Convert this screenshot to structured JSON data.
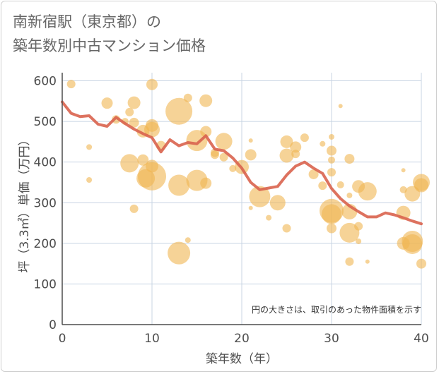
{
  "title_lines": [
    "南新宿駅（東京都）の",
    "築年数別中古マンション価格"
  ],
  "colors": {
    "bubble": "#f0b652",
    "line": "#d9634e",
    "grid": "#c8d4e3",
    "axis": "#4d4d4d"
  },
  "chart_data": {
    "type": "scatter",
    "title": "南新宿駅（東京都）の築年数別中古マンション価格",
    "xlabel": "築年数（年）",
    "ylabel": "坪（3.3㎡）単価（万円）",
    "xlim": [
      0,
      40
    ],
    "ylim": [
      0,
      620
    ],
    "xticks": [
      0,
      10,
      20,
      30,
      40
    ],
    "yticks": [
      0,
      100,
      200,
      300,
      400,
      500,
      600
    ],
    "grid": true,
    "note": "円の大きさは、取引のあった物件面積を示す",
    "scatter": [
      {
        "x": 1,
        "y": 592,
        "r": 6
      },
      {
        "x": 3,
        "y": 437,
        "r": 4
      },
      {
        "x": 3,
        "y": 356,
        "r": 4
      },
      {
        "x": 5,
        "y": 545,
        "r": 8
      },
      {
        "x": 6,
        "y": 505,
        "r": 6
      },
      {
        "x": 7,
        "y": 500,
        "r": 5
      },
      {
        "x": 7.5,
        "y": 523,
        "r": 6
      },
      {
        "x": 7.5,
        "y": 397,
        "r": 13
      },
      {
        "x": 8,
        "y": 546,
        "r": 9
      },
      {
        "x": 8,
        "y": 497,
        "r": 7
      },
      {
        "x": 8,
        "y": 285,
        "r": 6
      },
      {
        "x": 9,
        "y": 476,
        "r": 9
      },
      {
        "x": 9,
        "y": 405,
        "r": 8
      },
      {
        "x": 9.3,
        "y": 360,
        "r": 13
      },
      {
        "x": 10,
        "y": 591,
        "r": 8
      },
      {
        "x": 10,
        "y": 490,
        "r": 9
      },
      {
        "x": 10,
        "y": 480,
        "r": 11
      },
      {
        "x": 10,
        "y": 390,
        "r": 9
      },
      {
        "x": 10,
        "y": 365,
        "r": 20
      },
      {
        "x": 11,
        "y": 440,
        "r": 7
      },
      {
        "x": 13,
        "y": 525,
        "r": 19
      },
      {
        "x": 13,
        "y": 343,
        "r": 15
      },
      {
        "x": 13,
        "y": 176,
        "r": 16
      },
      {
        "x": 14,
        "y": 558,
        "r": 6
      },
      {
        "x": 14,
        "y": 208,
        "r": 4
      },
      {
        "x": 15,
        "y": 453,
        "r": 15
      },
      {
        "x": 15,
        "y": 355,
        "r": 15
      },
      {
        "x": 16,
        "y": 551,
        "r": 9
      },
      {
        "x": 16,
        "y": 475,
        "r": 8
      },
      {
        "x": 16,
        "y": 348,
        "r": 8
      },
      {
        "x": 17,
        "y": 423,
        "r": 6
      },
      {
        "x": 17,
        "y": 418,
        "r": 6
      },
      {
        "x": 18,
        "y": 451,
        "r": 12
      },
      {
        "x": 18,
        "y": 412,
        "r": 6
      },
      {
        "x": 19,
        "y": 384,
        "r": 5
      },
      {
        "x": 20,
        "y": 388,
        "r": 10
      },
      {
        "x": 21,
        "y": 453,
        "r": 3
      },
      {
        "x": 21,
        "y": 418,
        "r": 8
      },
      {
        "x": 21,
        "y": 287,
        "r": 3
      },
      {
        "x": 22,
        "y": 315,
        "r": 15
      },
      {
        "x": 23,
        "y": 263,
        "r": 4
      },
      {
        "x": 24,
        "y": 300,
        "r": 11
      },
      {
        "x": 25,
        "y": 450,
        "r": 9
      },
      {
        "x": 25,
        "y": 416,
        "r": 10
      },
      {
        "x": 25,
        "y": 237,
        "r": 6
      },
      {
        "x": 26,
        "y": 437,
        "r": 8
      },
      {
        "x": 26,
        "y": 420,
        "r": 6
      },
      {
        "x": 27,
        "y": 460,
        "r": 6
      },
      {
        "x": 28,
        "y": 370,
        "r": 7
      },
      {
        "x": 29,
        "y": 445,
        "r": 4
      },
      {
        "x": 29,
        "y": 342,
        "r": 6
      },
      {
        "x": 30,
        "y": 462,
        "r": 4
      },
      {
        "x": 30,
        "y": 428,
        "r": 7
      },
      {
        "x": 30,
        "y": 405,
        "r": 5
      },
      {
        "x": 30,
        "y": 375,
        "r": 6
      },
      {
        "x": 30,
        "y": 280,
        "r": 17
      },
      {
        "x": 30,
        "y": 272,
        "r": 14
      },
      {
        "x": 30,
        "y": 237,
        "r": 7
      },
      {
        "x": 31,
        "y": 538,
        "r": 3
      },
      {
        "x": 31,
        "y": 344,
        "r": 5
      },
      {
        "x": 32,
        "y": 408,
        "r": 7
      },
      {
        "x": 32,
        "y": 318,
        "r": 4
      },
      {
        "x": 32,
        "y": 278,
        "r": 11
      },
      {
        "x": 32,
        "y": 226,
        "r": 14
      },
      {
        "x": 32,
        "y": 155,
        "r": 6
      },
      {
        "x": 33,
        "y": 340,
        "r": 9
      },
      {
        "x": 33,
        "y": 242,
        "r": 6
      },
      {
        "x": 33,
        "y": 205,
        "r": 4
      },
      {
        "x": 34,
        "y": 328,
        "r": 13
      },
      {
        "x": 34,
        "y": 155,
        "r": 3
      },
      {
        "x": 38,
        "y": 380,
        "r": 3
      },
      {
        "x": 38,
        "y": 332,
        "r": 5
      },
      {
        "x": 38,
        "y": 275,
        "r": 10
      },
      {
        "x": 38,
        "y": 200,
        "r": 9
      },
      {
        "x": 39,
        "y": 205,
        "r": 15
      },
      {
        "x": 39,
        "y": 198,
        "r": 14
      },
      {
        "x": 39,
        "y": 322,
        "r": 11
      },
      {
        "x": 40,
        "y": 350,
        "r": 12
      },
      {
        "x": 40,
        "y": 343,
        "r": 10
      },
      {
        "x": 40,
        "y": 150,
        "r": 7
      }
    ],
    "line": {
      "x": [
        0,
        1,
        2,
        3,
        4,
        5,
        6,
        7,
        8,
        9,
        10,
        11,
        12,
        13,
        14,
        15,
        16,
        17,
        18,
        19,
        20,
        21,
        22,
        23,
        24,
        25,
        26,
        27,
        28,
        29,
        30,
        31,
        32,
        33,
        34,
        35,
        36,
        37,
        38,
        39,
        40
      ],
      "y": [
        548,
        520,
        512,
        514,
        493,
        488,
        510,
        495,
        481,
        470,
        460,
        425,
        455,
        440,
        448,
        445,
        465,
        432,
        428,
        410,
        385,
        350,
        332,
        336,
        340,
        368,
        390,
        400,
        385,
        372,
        335,
        310,
        292,
        278,
        265,
        265,
        275,
        270,
        263,
        255,
        248
      ]
    }
  }
}
